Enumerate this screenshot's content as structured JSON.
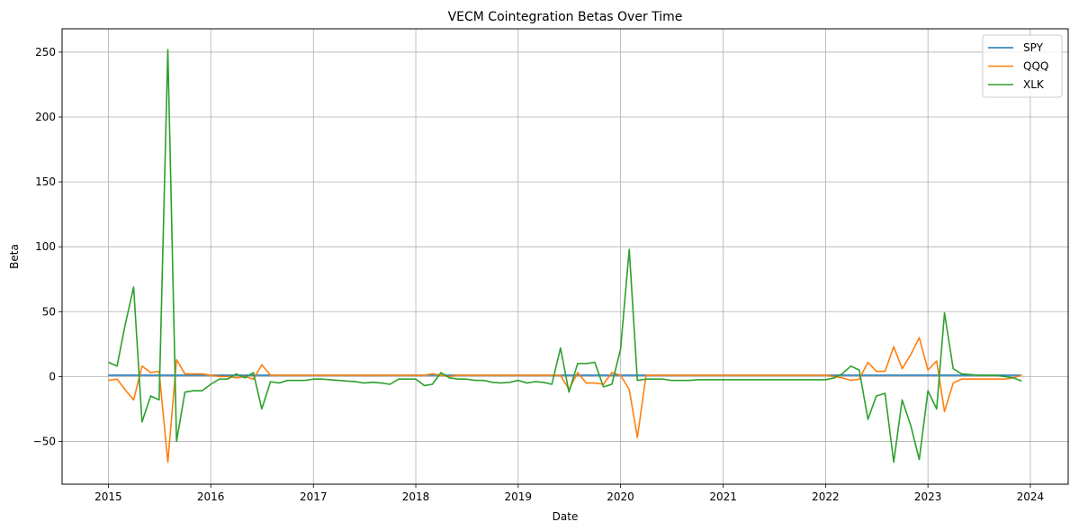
{
  "chart_data": {
    "type": "line",
    "title": "VECM Cointegration Betas Over Time",
    "xlabel": "Date",
    "ylabel": "Beta",
    "x_ticks": [
      "2015",
      "2016",
      "2017",
      "2018",
      "2019",
      "2020",
      "2021",
      "2022",
      "2023",
      "2024"
    ],
    "y_ticks": [
      -50,
      0,
      50,
      100,
      150,
      200,
      250
    ],
    "xlim": [
      "2014-07-20",
      "2024-05-15"
    ],
    "ylim": [
      -83,
      268
    ],
    "grid": true,
    "legend_position": "top-right",
    "x": [
      "2015-01-01",
      "2015-02-01",
      "2015-03-01",
      "2015-04-01",
      "2015-05-01",
      "2015-06-01",
      "2015-07-01",
      "2015-08-01",
      "2015-09-01",
      "2015-10-01",
      "2015-11-01",
      "2015-12-01",
      "2016-01-01",
      "2016-02-01",
      "2016-03-01",
      "2016-04-01",
      "2016-05-01",
      "2016-06-01",
      "2016-07-01",
      "2016-08-01",
      "2016-09-01",
      "2016-10-01",
      "2016-11-01",
      "2016-12-01",
      "2017-01-01",
      "2017-02-01",
      "2017-03-01",
      "2017-04-01",
      "2017-05-01",
      "2017-06-01",
      "2017-07-01",
      "2017-08-01",
      "2017-09-01",
      "2017-10-01",
      "2017-11-01",
      "2017-12-01",
      "2018-01-01",
      "2018-02-01",
      "2018-03-01",
      "2018-04-01",
      "2018-05-01",
      "2018-06-01",
      "2018-07-01",
      "2018-08-01",
      "2018-09-01",
      "2018-10-01",
      "2018-11-01",
      "2018-12-01",
      "2019-01-01",
      "2019-02-01",
      "2019-03-01",
      "2019-04-01",
      "2019-05-01",
      "2019-06-01",
      "2019-07-01",
      "2019-08-01",
      "2019-09-01",
      "2019-10-01",
      "2019-11-01",
      "2019-12-01",
      "2020-01-01",
      "2020-02-01",
      "2020-03-01",
      "2020-04-01",
      "2020-05-01",
      "2020-06-01",
      "2020-07-01",
      "2020-08-01",
      "2020-09-01",
      "2020-10-01",
      "2020-11-01",
      "2020-12-01",
      "2021-01-01",
      "2021-02-01",
      "2021-03-01",
      "2021-04-01",
      "2021-05-01",
      "2021-06-01",
      "2021-07-01",
      "2021-08-01",
      "2021-09-01",
      "2021-10-01",
      "2021-11-01",
      "2021-12-01",
      "2022-01-01",
      "2022-02-01",
      "2022-03-01",
      "2022-04-01",
      "2022-05-01",
      "2022-06-01",
      "2022-07-01",
      "2022-08-01",
      "2022-09-01",
      "2022-10-01",
      "2022-11-01",
      "2022-12-01",
      "2023-01-01",
      "2023-02-01",
      "2023-03-01",
      "2023-04-01",
      "2023-05-01",
      "2023-06-01",
      "2023-07-01",
      "2023-08-01",
      "2023-09-01",
      "2023-10-01",
      "2023-11-01",
      "2023-12-01"
    ],
    "series": [
      {
        "name": "SPY",
        "color": "#1f77b4",
        "values": [
          1,
          1,
          1,
          1,
          1,
          1,
          1,
          1,
          1,
          1,
          1,
          1,
          1,
          1,
          1,
          1,
          1,
          1,
          1,
          1,
          1,
          1,
          1,
          1,
          1,
          1,
          1,
          1,
          1,
          1,
          1,
          1,
          1,
          1,
          1,
          1,
          1,
          1,
          1,
          1,
          1,
          1,
          1,
          1,
          1,
          1,
          1,
          1,
          1,
          1,
          1,
          1,
          1,
          1,
          1,
          1,
          1,
          1,
          1,
          1,
          1,
          1,
          1,
          1,
          1,
          1,
          1,
          1,
          1,
          1,
          1,
          1,
          1,
          1,
          1,
          1,
          1,
          1,
          1,
          1,
          1,
          1,
          1,
          1,
          1,
          1,
          1,
          1,
          1,
          1,
          1,
          1,
          1,
          1,
          1,
          1,
          1,
          1,
          1,
          1,
          1,
          1,
          1,
          1,
          1,
          1,
          1,
          1
        ]
      },
      {
        "name": "QQQ",
        "color": "#ff7f0e",
        "values": [
          -3,
          -2,
          -10,
          -18,
          8,
          3,
          4,
          -66,
          13,
          2,
          2,
          2,
          1,
          0,
          0,
          -1,
          0,
          -2,
          9,
          1,
          1,
          1,
          1,
          1,
          1,
          1,
          1,
          1,
          1,
          1,
          1,
          1,
          1,
          1,
          1,
          1,
          1,
          1,
          2,
          1,
          0,
          1,
          1,
          1,
          1,
          1,
          1,
          1,
          1,
          1,
          1,
          1,
          1,
          1,
          -10,
          3,
          -5,
          -5,
          -6,
          3,
          1,
          -10,
          -47,
          1,
          1,
          1,
          1,
          1,
          1,
          1,
          1,
          1,
          1,
          1,
          1,
          1,
          1,
          1,
          1,
          1,
          1,
          1,
          1,
          1,
          1,
          0,
          -1,
          -3,
          -2,
          11,
          4,
          4,
          23,
          6,
          17,
          30,
          5,
          12,
          -27,
          -5,
          -2,
          -2,
          -2,
          -2,
          -2,
          -2,
          -1,
          1
        ]
      },
      {
        "name": "XLK",
        "color": "#2ca02c",
        "values": [
          11,
          8,
          39,
          69,
          -35,
          -15,
          -18,
          252,
          -50,
          -12,
          -11,
          -11,
          -6,
          -2,
          -2,
          2,
          -1,
          3,
          -25,
          -4,
          -5,
          -3,
          -3,
          -3,
          -2,
          -2,
          -2.5,
          -3,
          -3.5,
          -4,
          -5,
          -4.5,
          -5,
          -6,
          -2,
          -2,
          -2,
          -7,
          -6,
          3,
          -1,
          -2,
          -2,
          -3,
          -3,
          -4.5,
          -5,
          -4.5,
          -3,
          -5,
          -4,
          -4.5,
          -6,
          22,
          -12,
          10,
          10,
          11,
          -8,
          -6,
          21,
          98,
          -3,
          -2,
          -2,
          -2,
          -3,
          -3,
          -3,
          -2.5,
          -2.5,
          -2.5,
          -2.5,
          -2.5,
          -2.5,
          -2.5,
          -2.5,
          -2.5,
          -2.5,
          -2.5,
          -2.5,
          -2.5,
          -2.5,
          -2.5,
          -2.5,
          -1,
          2,
          8,
          5,
          -33,
          -15,
          -13,
          -66,
          -18,
          -38,
          -64,
          -11,
          -25,
          49,
          6,
          2,
          1.5,
          1,
          1,
          1,
          0,
          -1,
          -3.5
        ]
      }
    ]
  }
}
